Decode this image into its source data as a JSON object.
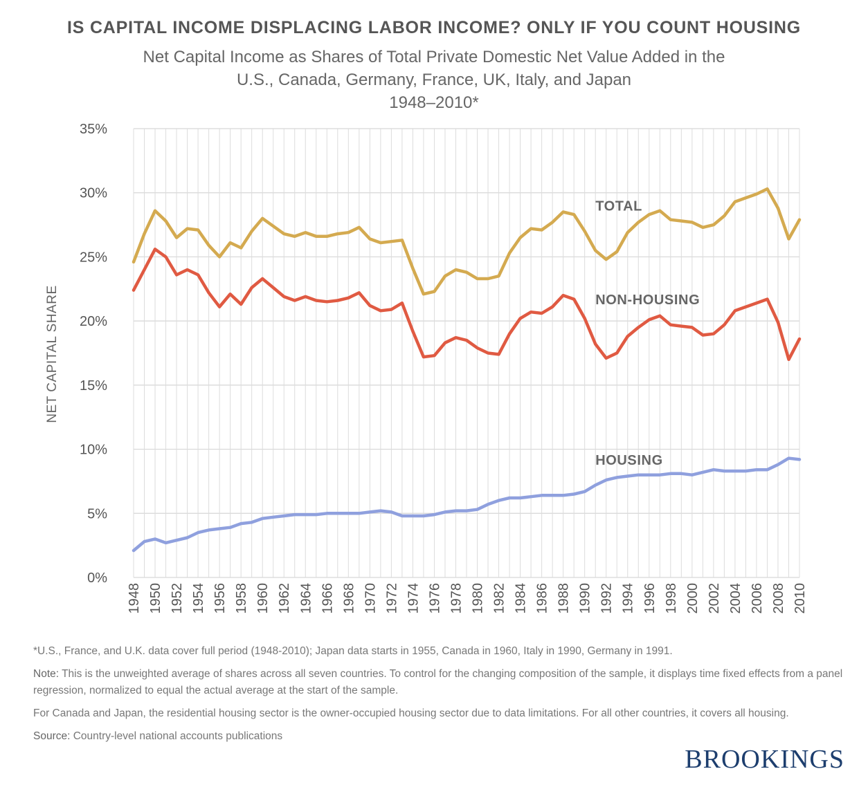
{
  "header": {
    "title": "IS CAPITAL INCOME DISPLACING LABOR INCOME? ONLY IF YOU COUNT HOUSING",
    "subtitle_line1": "Net Capital Income as Shares of Total Private Domestic Net Value Added in the",
    "subtitle_line2": "U.S., Canada, Germany, France, UK, Italy, and Japan",
    "subtitle_line3": "1948–2010*"
  },
  "chart_data": {
    "type": "line",
    "ylabel": "NET CAPITAL SHARE",
    "xlabel": "",
    "ylim": [
      0,
      35
    ],
    "yticks": [
      0,
      5,
      10,
      15,
      20,
      25,
      30,
      35
    ],
    "ytick_labels": [
      "0%",
      "5%",
      "10%",
      "15%",
      "20%",
      "25%",
      "30%",
      "35%"
    ],
    "xlim": [
      1948,
      2010
    ],
    "xticks": [
      1948,
      1950,
      1952,
      1954,
      1956,
      1958,
      1960,
      1962,
      1964,
      1966,
      1968,
      1970,
      1972,
      1974,
      1976,
      1978,
      1980,
      1982,
      1984,
      1986,
      1988,
      1990,
      1992,
      1994,
      1996,
      1998,
      2000,
      2002,
      2004,
      2006,
      2008,
      2010
    ],
    "grid": true,
    "x": [
      1948,
      1949,
      1950,
      1951,
      1952,
      1953,
      1954,
      1955,
      1956,
      1957,
      1958,
      1959,
      1960,
      1961,
      1962,
      1963,
      1964,
      1965,
      1966,
      1967,
      1968,
      1969,
      1970,
      1971,
      1972,
      1973,
      1974,
      1975,
      1976,
      1977,
      1978,
      1979,
      1980,
      1981,
      1982,
      1983,
      1984,
      1985,
      1986,
      1987,
      1988,
      1989,
      1990,
      1991,
      1992,
      1993,
      1994,
      1995,
      1996,
      1997,
      1998,
      1999,
      2000,
      2001,
      2002,
      2003,
      2004,
      2005,
      2006,
      2007,
      2008,
      2009,
      2010
    ],
    "series": [
      {
        "name": "TOTAL",
        "color": "#d4aa50",
        "values": [
          24.6,
          26.8,
          28.6,
          27.8,
          26.5,
          27.2,
          27.1,
          25.9,
          25.0,
          26.1,
          25.7,
          27.0,
          28.0,
          27.4,
          26.8,
          26.6,
          26.9,
          26.6,
          26.6,
          26.8,
          26.9,
          27.3,
          26.4,
          26.1,
          26.2,
          26.3,
          24.1,
          22.1,
          22.3,
          23.5,
          24.0,
          23.8,
          23.3,
          23.3,
          23.5,
          25.3,
          26.5,
          27.2,
          27.1,
          27.7,
          28.5,
          28.3,
          27.0,
          25.5,
          24.8,
          25.4,
          26.9,
          27.7,
          28.3,
          28.6,
          27.9,
          27.8,
          27.7,
          27.3,
          27.5,
          28.2,
          29.3,
          29.6,
          29.9,
          30.3,
          28.8,
          26.4,
          27.9
        ]
      },
      {
        "name": "NON-HOUSING",
        "color": "#e05a42",
        "values": [
          22.4,
          24.0,
          25.6,
          25.0,
          23.6,
          24.0,
          23.6,
          22.2,
          21.1,
          22.1,
          21.3,
          22.6,
          23.3,
          22.6,
          21.9,
          21.6,
          21.9,
          21.6,
          21.5,
          21.6,
          21.8,
          22.2,
          21.2,
          20.8,
          20.9,
          21.4,
          19.2,
          17.2,
          17.3,
          18.3,
          18.7,
          18.5,
          17.9,
          17.5,
          17.4,
          19.0,
          20.2,
          20.7,
          20.6,
          21.1,
          22.0,
          21.7,
          20.2,
          18.2,
          17.1,
          17.5,
          18.8,
          19.5,
          20.1,
          20.4,
          19.7,
          19.6,
          19.5,
          18.9,
          19.0,
          19.7,
          20.8,
          21.1,
          21.4,
          21.7,
          19.9,
          17.0,
          18.6
        ]
      },
      {
        "name": "HOUSING",
        "color": "#8fa0de",
        "values": [
          2.1,
          2.8,
          3.0,
          2.7,
          2.9,
          3.1,
          3.5,
          3.7,
          3.8,
          3.9,
          4.2,
          4.3,
          4.6,
          4.7,
          4.8,
          4.9,
          4.9,
          4.9,
          5.0,
          5.0,
          5.0,
          5.0,
          5.1,
          5.2,
          5.1,
          4.8,
          4.8,
          4.8,
          4.9,
          5.1,
          5.2,
          5.2,
          5.3,
          5.7,
          6.0,
          6.2,
          6.2,
          6.3,
          6.4,
          6.4,
          6.4,
          6.5,
          6.7,
          7.2,
          7.6,
          7.8,
          7.9,
          8.0,
          8.0,
          8.0,
          8.1,
          8.1,
          8.0,
          8.2,
          8.4,
          8.3,
          8.3,
          8.3,
          8.4,
          8.4,
          8.8,
          9.3,
          9.2
        ]
      }
    ],
    "annotations": [
      {
        "text": "TOTAL",
        "series": "TOTAL",
        "at_x": 1991,
        "at_y": 28.6
      },
      {
        "text": "NON-HOUSING",
        "series": "NON-HOUSING",
        "at_x": 1991,
        "at_y": 21.3
      },
      {
        "text": "HOUSING",
        "series": "HOUSING",
        "at_x": 1991,
        "at_y": 8.8
      }
    ]
  },
  "notes": {
    "footnote": "*U.S., France, and U.K. data cover full period (1948-2010); Japan data starts in 1955, Canada in 1960, Italy in 1990, Germany in 1991.",
    "note_label": "Note:",
    "note_text": " This is the unweighted average of shares across all seven countries. To control for the changing composition of the sample, it displays time fixed effects from a panel regression, normalized to equal the actual average at the start of the sample.",
    "housing_text": "For Canada and Japan, the residential housing sector is the owner-occupied housing sector due to data limitations. For all other countries, it covers all housing.",
    "source_label": "Source:",
    "source_text": " Country-level national accounts publications"
  },
  "brand": {
    "name": "BROOKINGS"
  }
}
